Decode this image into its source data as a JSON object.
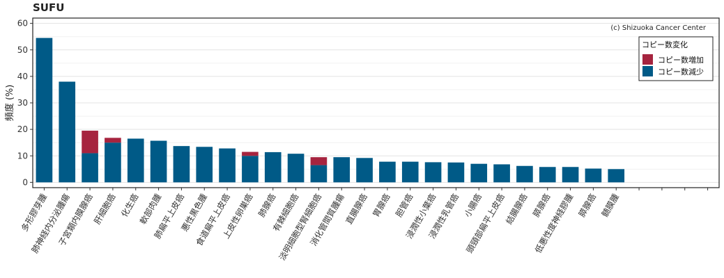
{
  "chart_data": {
    "type": "bar",
    "stacked": true,
    "title": "SUFU",
    "ylabel": "頻度 (%)",
    "ylim": [
      -2,
      62
    ],
    "yticks": [
      0,
      10,
      20,
      30,
      40,
      50,
      60
    ],
    "grid": true,
    "credit": "(c) Shizuoka Cancer Center",
    "legend": {
      "title": "コピー数変化",
      "position": "top-right",
      "entries": [
        "コピー数増加",
        "コピー数減少"
      ]
    },
    "colors": {
      "gain": "#a6243f",
      "loss": "#005a87"
    },
    "categories": [
      "多形膠芽腫",
      "肺神経内分泌腫瘍",
      "子宮類内膜腺癌",
      "肝細胞癌",
      "化生癌",
      "軟部肉腫",
      "肺扁平上皮癌",
      "悪性黒色腫",
      "食道扁平上皮癌",
      "上皮性卵巣癌",
      "肺腺癌",
      "有棘細胞癌",
      "淡明細胞型腎細胞癌",
      "消化管間質腫瘍",
      "直腸腺癌",
      "胃腺癌",
      "胆管癌",
      "浸潤性小葉癌",
      "浸潤性乳管癌",
      "小腸癌",
      "頭頸部扁平上皮癌",
      "結腸腺癌",
      "膵腺癌",
      "低悪性度神経膠腫",
      "膵腺癌",
      "髄膜腫",
      "",
      "",
      "",
      ""
    ],
    "series": [
      {
        "name": "コピー数減少",
        "values": [
          54.5,
          38,
          11,
          15,
          16.5,
          15.7,
          13.7,
          13.4,
          12.8,
          10,
          11.4,
          10.8,
          6.5,
          9.5,
          9.2,
          7.8,
          7.8,
          7.6,
          7.5,
          7,
          6.8,
          6.2,
          5.8,
          5.8,
          5.2,
          5,
          0,
          0,
          0,
          0
        ]
      },
      {
        "name": "コピー数増加",
        "values": [
          0,
          0,
          8.5,
          1.8,
          0,
          0,
          0,
          0,
          0,
          1.5,
          0,
          0,
          3,
          0,
          0,
          0,
          0,
          0,
          0,
          0,
          0,
          0,
          0,
          0,
          0,
          0,
          0,
          0,
          0,
          0
        ]
      }
    ]
  }
}
